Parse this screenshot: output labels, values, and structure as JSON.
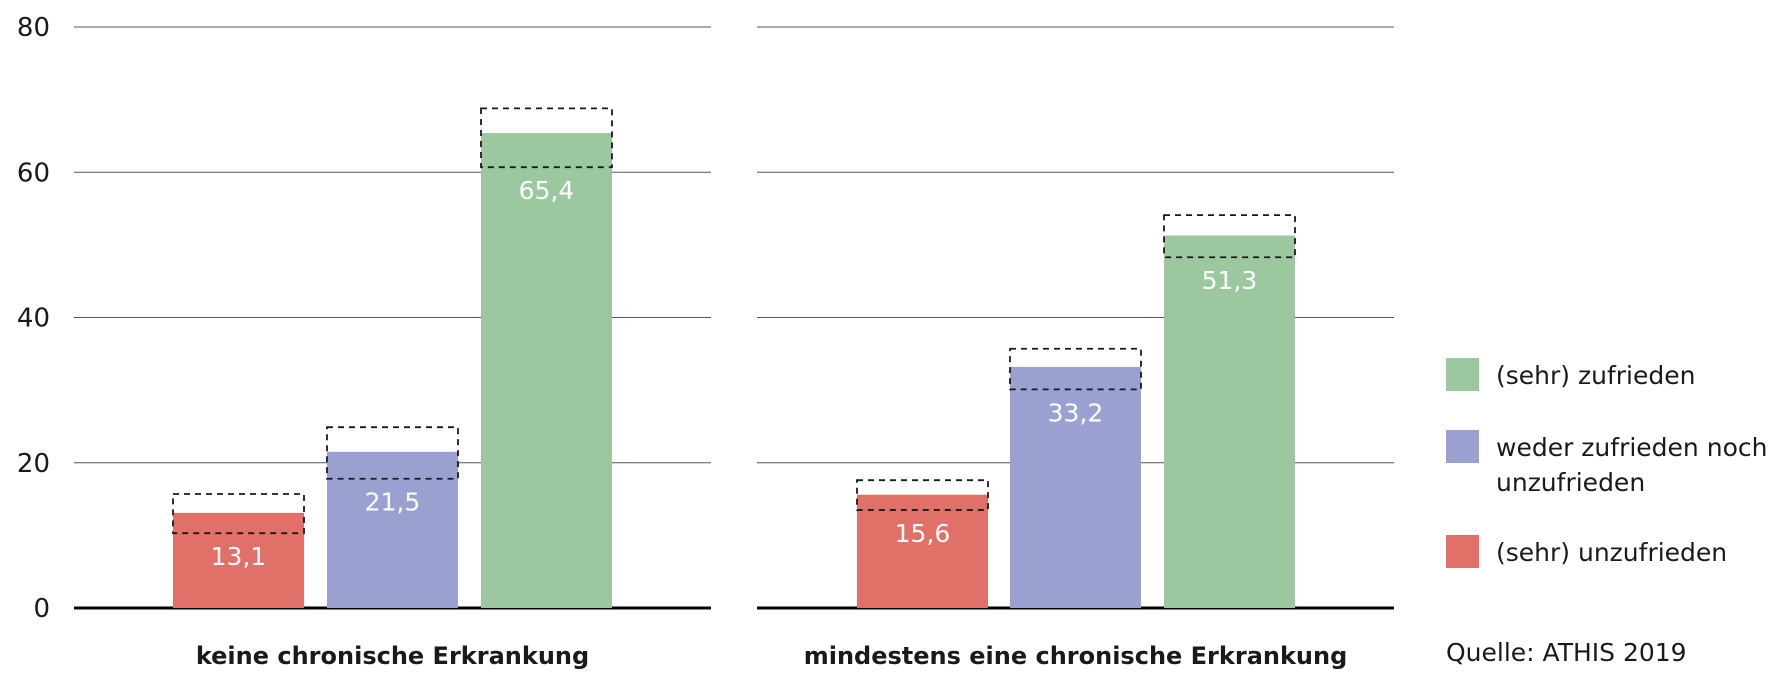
{
  "chart_data": {
    "type": "bar",
    "categories": [
      "keine chronische Erkrankung",
      "mindestens eine chronische Erkrankung"
    ],
    "series": [
      {
        "name": "(sehr) unzufrieden",
        "values": [
          13.1,
          15.6
        ],
        "labels": [
          "13,1",
          "15,6"
        ],
        "ci": [
          [
            10.3,
            15.7
          ],
          [
            13.5,
            17.6
          ]
        ],
        "color": "#e07068"
      },
      {
        "name": "weder zufrieden noch unzufrieden",
        "values": [
          21.5,
          33.2
        ],
        "labels": [
          "21,5",
          "33,2"
        ],
        "ci": [
          [
            17.8,
            24.9
          ],
          [
            30.1,
            35.7
          ]
        ],
        "color": "#9aa1d0"
      },
      {
        "name": "(sehr) zufrieden",
        "values": [
          65.4,
          51.3
        ],
        "labels": [
          "65,4",
          "51,3"
        ],
        "ci": [
          [
            60.7,
            68.8
          ],
          [
            48.3,
            54.1
          ]
        ],
        "color": "#9bc89f"
      }
    ],
    "yticks": [
      "0",
      "20",
      "40",
      "60",
      "80"
    ],
    "ylim": [
      0,
      80
    ],
    "grid": true,
    "legend": {
      "position": "right",
      "entries": [
        {
          "lines": [
            "(sehr) zufrieden"
          ],
          "color": "#9bc89f"
        },
        {
          "lines": [
            "weder zufrieden noch",
            "unzufrieden"
          ],
          "color": "#9aa1d0"
        },
        {
          "lines": [
            "(sehr) unzufrieden"
          ],
          "color": "#e07068"
        }
      ]
    },
    "source": "Quelle: ATHIS 2019"
  }
}
